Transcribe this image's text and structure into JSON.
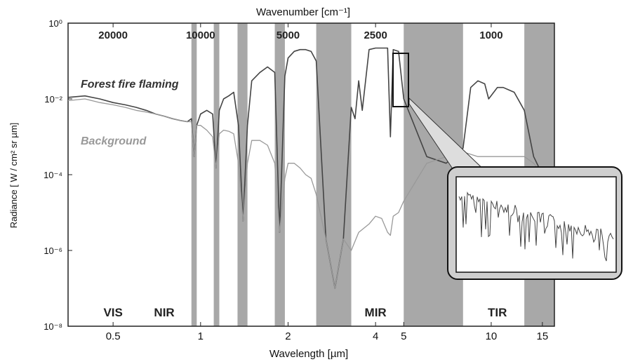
{
  "chart_data": {
    "type": "line",
    "title": "",
    "top_axis_label": "Wavenumber [cm⁻¹]",
    "xlabel": "Wavelength [µm]",
    "ylabel": "Radiance [ W / cm² sr µm]",
    "x_scale": "log",
    "y_scale": "log",
    "xlim": [
      0.35,
      16.5
    ],
    "ylim": [
      1e-08,
      1
    ],
    "x_ticks": [
      {
        "value": 0.5,
        "label": "0.5"
      },
      {
        "value": 1,
        "label": "1"
      },
      {
        "value": 2,
        "label": "2"
      },
      {
        "value": 4,
        "label": "4"
      },
      {
        "value": 5,
        "label": "5"
      },
      {
        "value": 10,
        "label": "10"
      },
      {
        "value": 15,
        "label": "15"
      }
    ],
    "y_ticks": [
      {
        "value": 1,
        "label": "10⁰"
      },
      {
        "value": 0.01,
        "label": "10⁻²"
      },
      {
        "value": 0.0001,
        "label": "10⁻⁴"
      },
      {
        "value": 1e-06,
        "label": "10⁻⁶"
      },
      {
        "value": 1e-08,
        "label": "10⁻⁸"
      }
    ],
    "top_ticks": [
      {
        "value": 0.5,
        "label": "20000"
      },
      {
        "value": 1.0,
        "label": "10000"
      },
      {
        "value": 2.0,
        "label": "5000"
      },
      {
        "value": 4.0,
        "label": "2500"
      },
      {
        "value": 10.0,
        "label": "1000"
      }
    ],
    "regions": [
      {
        "value": 0.5,
        "label": "VIS"
      },
      {
        "value": 0.75,
        "label": "NIR"
      },
      {
        "value": 4.0,
        "label": "MIR"
      },
      {
        "value": 10.5,
        "label": "TIR"
      }
    ],
    "absorption_bands": [
      [
        0.93,
        0.97
      ],
      [
        1.11,
        1.16
      ],
      [
        1.34,
        1.45
      ],
      [
        1.8,
        1.95
      ],
      [
        2.5,
        3.3
      ],
      [
        5.0,
        8.0
      ],
      [
        13.0,
        16.5
      ]
    ],
    "series": [
      {
        "name": "Forest fire flaming",
        "color": "#444444",
        "x": [
          0.35,
          0.4,
          0.45,
          0.5,
          0.55,
          0.6,
          0.65,
          0.7,
          0.75,
          0.8,
          0.85,
          0.9,
          0.93,
          0.95,
          0.97,
          1.0,
          1.05,
          1.1,
          1.13,
          1.16,
          1.2,
          1.25,
          1.3,
          1.35,
          1.4,
          1.45,
          1.5,
          1.6,
          1.7,
          1.8,
          1.87,
          1.95,
          2.0,
          2.1,
          2.2,
          2.3,
          2.4,
          2.5,
          2.7,
          2.9,
          3.1,
          3.3,
          3.4,
          3.5,
          3.6,
          3.8,
          4.0,
          4.2,
          4.4,
          4.5,
          4.6,
          4.8,
          5.0,
          6.0,
          7.0,
          8.0,
          8.5,
          9.0,
          9.5,
          9.8,
          10.5,
          11.0,
          12.0,
          13.0,
          14.0,
          15.0,
          16.0
        ],
        "y": [
          0.011,
          0.012,
          0.01,
          0.008,
          0.007,
          0.006,
          0.005,
          0.004,
          0.0035,
          0.003,
          0.0027,
          0.0025,
          0.003,
          0.0003,
          0.002,
          0.004,
          0.005,
          0.004,
          0.00015,
          0.005,
          0.01,
          0.012,
          0.015,
          0.002,
          6e-06,
          0.002,
          0.03,
          0.05,
          0.07,
          0.05,
          3e-06,
          0.04,
          0.12,
          0.18,
          0.2,
          0.2,
          0.18,
          0.1,
          2e-06,
          1e-07,
          2e-06,
          0.006,
          0.003,
          0.03,
          0.005,
          0.2,
          0.22,
          0.22,
          0.22,
          0.001,
          0.2,
          0.18,
          0.01,
          0.0003,
          0.0002,
          0.0005,
          0.02,
          0.03,
          0.025,
          0.01,
          0.02,
          0.02,
          0.015,
          0.005,
          0.0003,
          0.0001,
          5e-05
        ]
      },
      {
        "name": "Background",
        "color": "#999999",
        "x": [
          0.35,
          0.4,
          0.45,
          0.5,
          0.55,
          0.6,
          0.65,
          0.7,
          0.75,
          0.8,
          0.85,
          0.9,
          0.93,
          0.95,
          0.97,
          1.0,
          1.05,
          1.1,
          1.13,
          1.16,
          1.2,
          1.25,
          1.3,
          1.35,
          1.4,
          1.45,
          1.5,
          1.6,
          1.7,
          1.8,
          1.87,
          1.95,
          2.0,
          2.1,
          2.2,
          2.3,
          2.4,
          2.5,
          2.7,
          2.9,
          3.1,
          3.3,
          3.5,
          3.8,
          4.0,
          4.2,
          4.4,
          4.5,
          4.6,
          4.8,
          5.0,
          6.0,
          7.0,
          8.0,
          9.0,
          10.0,
          11.0,
          12.0,
          13.0,
          14.0,
          15.0,
          16.0
        ],
        "y": [
          0.009,
          0.01,
          0.008,
          0.007,
          0.006,
          0.005,
          0.0045,
          0.004,
          0.0035,
          0.003,
          0.0027,
          0.0025,
          0.0025,
          0.0003,
          0.002,
          0.002,
          0.0015,
          0.001,
          0.00015,
          0.0012,
          0.0015,
          0.0014,
          0.0012,
          0.0002,
          6e-06,
          0.0002,
          0.0008,
          0.0008,
          0.0006,
          0.0002,
          3e-06,
          8e-05,
          0.0002,
          0.0002,
          0.00015,
          0.0001,
          8e-05,
          3e-05,
          2e-06,
          1e-07,
          2e-06,
          1e-06,
          3e-06,
          5e-06,
          8e-06,
          7e-06,
          3e-06,
          2.5e-06,
          8e-06,
          1e-05,
          2e-05,
          0.0002,
          0.0003,
          0.0004,
          0.0003,
          0.0003,
          0.0003,
          0.0003,
          0.0003,
          0.0002,
          0.0001,
          5e-05
        ]
      }
    ]
  }
}
